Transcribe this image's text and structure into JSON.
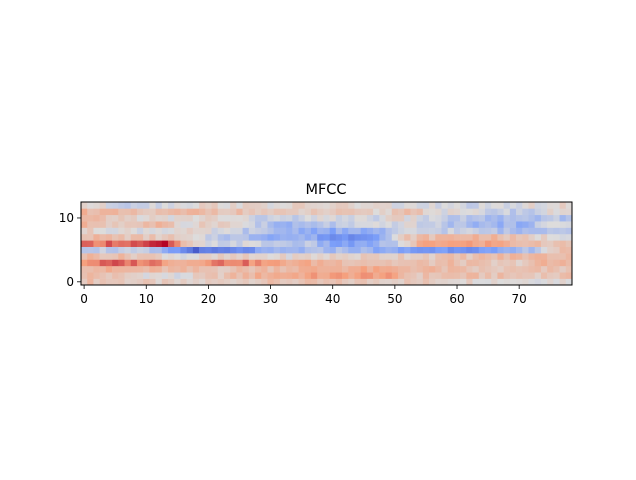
{
  "chart_data": {
    "type": "heatmap",
    "title": "MFCC",
    "xlabel": "",
    "ylabel": "",
    "colormap": "coolwarm",
    "x_ticks": [
      0,
      10,
      20,
      30,
      40,
      50,
      60,
      70
    ],
    "y_ticks": [
      0,
      10
    ],
    "xlim": [
      -0.5,
      78.5
    ],
    "ylim": [
      -0.5,
      12.5
    ],
    "n_frames": 79,
    "n_coefficients": 13,
    "value_range": [
      -1,
      1
    ],
    "rows_bottom_to_top": [
      [
        [
          0,
          0.25
        ],
        [
          16,
          0.05
        ],
        [
          28,
          0.2
        ],
        [
          55,
          0.15
        ],
        [
          68,
          0.05
        ]
      ],
      [
        [
          0,
          0.3
        ],
        [
          8,
          0.1
        ],
        [
          15,
          -0.05
        ],
        [
          20,
          0.15
        ],
        [
          30,
          0.4
        ],
        [
          38,
          0.45
        ],
        [
          48,
          0.5
        ],
        [
          53,
          0.2
        ],
        [
          60,
          0.25
        ],
        [
          70,
          0.2
        ]
      ],
      [
        [
          0,
          0.35
        ],
        [
          16,
          0.25
        ],
        [
          22,
          0.2
        ],
        [
          30,
          0.3
        ],
        [
          36,
          0.35
        ],
        [
          45,
          0.4
        ],
        [
          55,
          0.3
        ],
        [
          65,
          0.15
        ],
        [
          72,
          0.2
        ]
      ],
      [
        [
          0,
          0.55
        ],
        [
          5,
          0.7
        ],
        [
          12,
          0.6
        ],
        [
          16,
          0.35
        ],
        [
          20,
          0.6
        ],
        [
          25,
          0.65
        ],
        [
          30,
          0.45
        ],
        [
          34,
          0.4
        ],
        [
          42,
          0.3
        ],
        [
          52,
          0.2
        ],
        [
          60,
          0.25
        ],
        [
          68,
          0.1
        ],
        [
          74,
          0.3
        ]
      ],
      [
        [
          0,
          0.3
        ],
        [
          10,
          0.2
        ],
        [
          16,
          0.0
        ],
        [
          24,
          0.1
        ],
        [
          32,
          0.05
        ],
        [
          40,
          0.1
        ],
        [
          50,
          0.15
        ],
        [
          60,
          0.2
        ],
        [
          70,
          0.3
        ]
      ],
      [
        [
          0,
          -0.1
        ],
        [
          10,
          -0.2
        ],
        [
          15,
          -0.55
        ],
        [
          18,
          -0.8
        ],
        [
          24,
          -0.7
        ],
        [
          30,
          -0.4
        ],
        [
          36,
          -0.3
        ],
        [
          42,
          -0.25
        ],
        [
          50,
          -0.45
        ],
        [
          54,
          -0.55
        ],
        [
          60,
          -0.5
        ],
        [
          66,
          -0.55
        ],
        [
          72,
          -0.2
        ],
        [
          76,
          0.2
        ]
      ],
      [
        [
          0,
          0.6
        ],
        [
          4,
          0.7
        ],
        [
          10,
          0.75
        ],
        [
          13,
          0.95
        ],
        [
          15,
          0.5
        ],
        [
          17,
          0.1
        ],
        [
          20,
          -0.1
        ],
        [
          26,
          -0.05
        ],
        [
          30,
          -0.15
        ],
        [
          36,
          -0.2
        ],
        [
          40,
          -0.45
        ],
        [
          44,
          -0.5
        ],
        [
          48,
          -0.3
        ],
        [
          52,
          0.0
        ],
        [
          55,
          0.5
        ],
        [
          60,
          0.45
        ],
        [
          66,
          0.45
        ],
        [
          70,
          0.3
        ],
        [
          74,
          0.2
        ]
      ],
      [
        [
          0,
          0.3
        ],
        [
          8,
          0.2
        ],
        [
          14,
          0.15
        ],
        [
          18,
          -0.05
        ],
        [
          24,
          -0.2
        ],
        [
          30,
          -0.35
        ],
        [
          36,
          -0.35
        ],
        [
          40,
          -0.6
        ],
        [
          44,
          -0.55
        ],
        [
          48,
          -0.35
        ],
        [
          52,
          0.2
        ],
        [
          58,
          0.3
        ],
        [
          64,
          0.35
        ],
        [
          70,
          0.15
        ],
        [
          75,
          0.05
        ]
      ],
      [
        [
          0,
          0.1
        ],
        [
          8,
          0.0
        ],
        [
          16,
          0.05
        ],
        [
          24,
          -0.1
        ],
        [
          32,
          -0.3
        ],
        [
          40,
          -0.4
        ],
        [
          48,
          -0.35
        ],
        [
          52,
          -0.1
        ],
        [
          60,
          -0.1
        ],
        [
          66,
          -0.2
        ],
        [
          70,
          -0.3
        ],
        [
          76,
          -0.1
        ]
      ],
      [
        [
          0,
          0.3
        ],
        [
          6,
          0.15
        ],
        [
          12,
          0.3
        ],
        [
          16,
          0.0
        ],
        [
          20,
          0.2
        ],
        [
          26,
          0.0
        ],
        [
          32,
          -0.4
        ],
        [
          38,
          -0.2
        ],
        [
          46,
          -0.1
        ],
        [
          52,
          0.0
        ],
        [
          58,
          -0.2
        ],
        [
          64,
          -0.3
        ],
        [
          70,
          -0.35
        ],
        [
          76,
          0.0
        ]
      ],
      [
        [
          0,
          0.25
        ],
        [
          8,
          0.1
        ],
        [
          14,
          0.0
        ],
        [
          20,
          0.1
        ],
        [
          28,
          -0.1
        ],
        [
          34,
          -0.15
        ],
        [
          40,
          0.0
        ],
        [
          46,
          -0.1
        ],
        [
          50,
          0.1
        ],
        [
          56,
          -0.1
        ],
        [
          64,
          -0.25
        ],
        [
          70,
          -0.3
        ],
        [
          76,
          -0.2
        ]
      ],
      [
        [
          0,
          0.35
        ],
        [
          10,
          0.15
        ],
        [
          18,
          0.3
        ],
        [
          26,
          0.2
        ],
        [
          32,
          0.1
        ],
        [
          40,
          0.15
        ],
        [
          48,
          0.05
        ],
        [
          52,
          0.3
        ],
        [
          58,
          0.0
        ],
        [
          66,
          -0.1
        ],
        [
          72,
          -0.15
        ],
        [
          77,
          0.1
        ]
      ],
      [
        [
          0,
          0.1
        ],
        [
          6,
          -0.1
        ],
        [
          14,
          0.0
        ],
        [
          20,
          0.1
        ],
        [
          30,
          0.05
        ],
        [
          40,
          0.1
        ],
        [
          50,
          0.0
        ],
        [
          56,
          -0.05
        ],
        [
          66,
          -0.1
        ],
        [
          74,
          0.05
        ]
      ]
    ]
  }
}
